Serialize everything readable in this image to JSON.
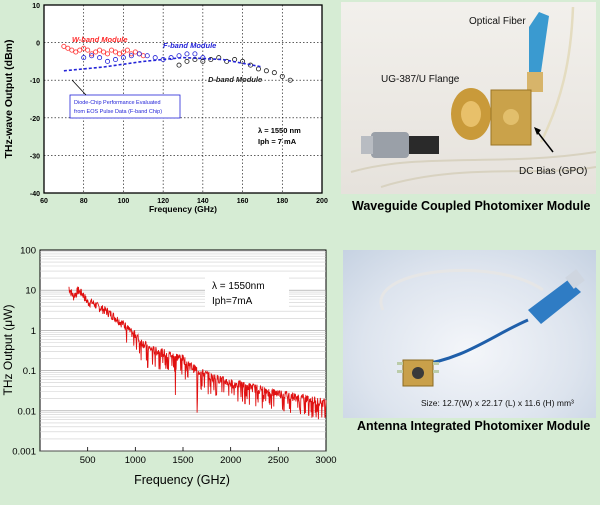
{
  "top_chart": {
    "ylabel": "THz-wave Output (dBm)",
    "xlabel": "Frequency (GHz)",
    "xticks": [
      "60",
      "80",
      "100",
      "120",
      "140",
      "160",
      "180",
      "200"
    ],
    "yticks": [
      "10",
      "0",
      "-10",
      "-20",
      "-30",
      "-40"
    ],
    "series_labels": {
      "w": "W-band Module",
      "f": "F-band Module",
      "d": "D-band Module"
    },
    "note_line1": "Diode-Chip Performance Evaluated",
    "note_line2": "from EOS Pulse Data (F-band Chip)",
    "cond_lambda": "λ = 1550 nm",
    "cond_iph": "Iph = 7 mA"
  },
  "bottom_chart": {
    "ylabel": "THz Output (μW)",
    "xlabel": "Frequency (GHz)",
    "xticks": [
      "500",
      "1000",
      "1500",
      "2000",
      "2500",
      "3000"
    ],
    "yticks": [
      "100",
      "10",
      "1",
      "0.1",
      "0.01",
      "0.001"
    ],
    "cond_lambda": "λ = 1550nm",
    "cond_iph": "Iph=7mA"
  },
  "photo_top": {
    "label_fiber": "Optical Fiber",
    "label_flange": "UG-387/U Flange",
    "label_bias": "DC Bias (GPO)",
    "caption": "Waveguide Coupled Photomixer Module"
  },
  "photo_bottom": {
    "size_text": "Size: 12.7(W) x 22.17 (L) x 11.6 (H) mm³",
    "caption": "Antenna Integrated Photomixer Module"
  },
  "colors": {
    "w_band": "#ff2a2a",
    "f_band": "#2424d8",
    "d_band": "#222222",
    "curve": "#e01010",
    "background": "#d6ecd4"
  },
  "chart_data": [
    {
      "type": "scatter",
      "xlabel": "Frequency (GHz)",
      "ylabel": "THz-wave Output (dBm)",
      "xlim": [
        60,
        200
      ],
      "ylim": [
        -40,
        10
      ],
      "series": [
        {
          "name": "W-band Module",
          "x": [
            70,
            72,
            74,
            76,
            78,
            80,
            82,
            84,
            86,
            88,
            90,
            92,
            94,
            96,
            98,
            100,
            102,
            104,
            106,
            108,
            110
          ],
          "y": [
            -1,
            -1.5,
            -2,
            -2.5,
            -2,
            -1.5,
            -2,
            -3,
            -2.5,
            -2,
            -2.5,
            -3,
            -2,
            -2.5,
            -3,
            -2.5,
            -2,
            -3,
            -2.5,
            -3,
            -3.5
          ]
        },
        {
          "name": "F-band Module",
          "x": [
            80,
            84,
            88,
            92,
            96,
            100,
            104,
            108,
            112,
            116,
            120,
            124,
            128,
            132,
            136,
            140
          ],
          "y": [
            -4,
            -3.5,
            -4,
            -5,
            -4.5,
            -4,
            -3.5,
            -3,
            -3.5,
            -4,
            -4.5,
            -4,
            -3.5,
            -3,
            -3,
            -4
          ]
        },
        {
          "name": "D-band Module",
          "x": [
            128,
            132,
            136,
            140,
            144,
            148,
            152,
            156,
            160,
            164,
            168,
            172,
            176,
            180,
            184
          ],
          "y": [
            -6,
            -5,
            -4.5,
            -5,
            -4.5,
            -4,
            -5,
            -4.5,
            -5,
            -6,
            -7,
            -7.5,
            -8,
            -9,
            -10
          ]
        },
        {
          "name": "Diode-Chip Performance Evaluated from EOS Pulse Data (F-band Chip)",
          "x": [
            70,
            90,
            110,
            130,
            150,
            170
          ],
          "y": [
            -7.5,
            -6.5,
            -5,
            -4,
            -4.5,
            -6.5
          ]
        }
      ]
    },
    {
      "type": "line",
      "xlabel": "Frequency (GHz)",
      "ylabel": "THz Output (μW)",
      "xlim": [
        0,
        3000
      ],
      "ylim": [
        0.001,
        100
      ],
      "yscale": "log",
      "grid": true,
      "series": [
        {
          "name": "",
          "x": [
            300,
            350,
            400,
            450,
            500,
            550,
            600,
            650,
            700,
            750,
            800,
            850,
            900,
            950,
            1000,
            1050,
            1100,
            1150,
            1200,
            1300,
            1400,
            1500,
            1600,
            1700,
            1800,
            1900,
            2000,
            2100,
            2200,
            2300,
            2400,
            2500,
            2600,
            2700,
            2800,
            2900,
            3000
          ],
          "y": [
            12,
            7,
            10,
            8,
            5,
            5,
            4,
            3.5,
            3,
            2.5,
            2,
            1.6,
            1.3,
            0.9,
            0.8,
            0.55,
            0.45,
            0.35,
            0.32,
            0.28,
            0.24,
            0.2,
            0.12,
            0.09,
            0.07,
            0.06,
            0.05,
            0.045,
            0.04,
            0.035,
            0.03,
            0.028,
            0.025,
            0.022,
            0.02,
            0.018,
            0.016
          ]
        }
      ]
    }
  ]
}
